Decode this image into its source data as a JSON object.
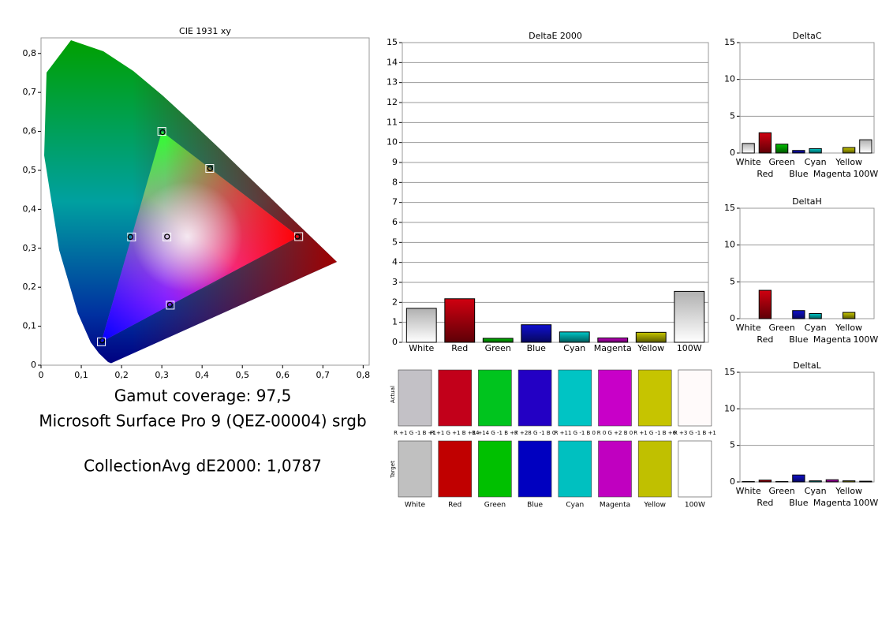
{
  "chart_data": [
    {
      "type": "scatter",
      "title": "CIE 1931 xy",
      "xlim": [
        0,
        0.815
      ],
      "ylim": [
        0,
        0.84
      ],
      "xticks": [
        0,
        {
          "value": 0.1,
          "label": "0,1"
        },
        {
          "value": 0.2,
          "label": "0,2"
        },
        {
          "value": 0.3,
          "label": "0,3"
        },
        {
          "value": 0.4,
          "label": "0,4"
        },
        {
          "value": 0.5,
          "label": "0,5"
        },
        {
          "value": 0.6,
          "label": "0,6"
        },
        {
          "value": 0.7,
          "label": "0,7"
        },
        {
          "value": 0.8,
          "label": "0,8"
        }
      ],
      "yticks": [
        0,
        {
          "value": 0.1,
          "label": "0,1"
        },
        {
          "value": 0.2,
          "label": "0,2"
        },
        {
          "value": 0.3,
          "label": "0,3"
        },
        {
          "value": 0.4,
          "label": "0,4"
        },
        {
          "value": 0.5,
          "label": "0,5"
        },
        {
          "value": 0.6,
          "label": "0,6"
        },
        {
          "value": 0.7,
          "label": "0,7"
        },
        {
          "value": 0.8,
          "label": "0,8"
        }
      ],
      "series": [
        {
          "marker": "square",
          "color": "#ffffff",
          "x": [
            0.64,
            0.3,
            0.15,
            0.225,
            0.321,
            0.419,
            0.3127
          ],
          "y": [
            0.33,
            0.6,
            0.06,
            0.329,
            0.154,
            0.505,
            0.329
          ]
        },
        {
          "marker": "circle",
          "color": "#000000",
          "x": [
            0.637,
            0.302,
            0.152,
            0.222,
            0.32,
            0.42,
            0.313
          ],
          "y": [
            0.33,
            0.598,
            0.063,
            0.329,
            0.155,
            0.505,
            0.33
          ]
        }
      ]
    },
    {
      "type": "bar",
      "title": "DeltaE 2000",
      "categories": [
        "White",
        "Red",
        "Green",
        "Blue",
        "Cyan",
        "Magenta",
        "Yellow",
        "100W"
      ],
      "values": [
        1.7,
        2.18,
        0.2,
        0.88,
        0.52,
        0.22,
        0.5,
        2.55
      ],
      "colors": [
        "#c0c0c0",
        "#d00010",
        "#00c000",
        "#1010d0",
        "#00c8c8",
        "#c800c8",
        "#c8c800",
        "#ffffff"
      ],
      "ylim": [
        0,
        15
      ],
      "yticks": [
        0,
        1,
        2,
        3,
        4,
        5,
        6,
        7,
        8,
        9,
        10,
        11,
        12,
        13,
        14,
        15
      ],
      "grid": true
    },
    {
      "type": "bar",
      "title": "DeltaC",
      "categories": [
        "White",
        "Red",
        "Green",
        "Blue",
        "Cyan",
        "Magenta",
        "Yellow",
        "100W"
      ],
      "values": [
        1.3,
        2.75,
        1.2,
        0.35,
        0.6,
        0,
        0.75,
        1.8
      ],
      "colors": [
        "#c0c0c0",
        "#d00010",
        "#00c000",
        "#1010d0",
        "#00c8c8",
        "#c800c8",
        "#c8c800",
        "#ffffff"
      ],
      "ylim": [
        0,
        15
      ],
      "yticks": [
        0,
        5,
        10,
        15
      ],
      "grid": true
    },
    {
      "type": "bar",
      "title": "DeltaH",
      "categories": [
        "White",
        "Red",
        "Green",
        "Blue",
        "Cyan",
        "Magenta",
        "Yellow",
        "100W"
      ],
      "values": [
        0,
        3.85,
        0,
        1.1,
        0.7,
        0,
        0.85,
        0
      ],
      "colors": [
        "#c0c0c0",
        "#d00010",
        "#00c000",
        "#1010d0",
        "#00c8c8",
        "#c800c8",
        "#c8c800",
        "#ffffff"
      ],
      "ylim": [
        0,
        15
      ],
      "yticks": [
        0,
        5,
        10,
        15
      ],
      "grid": true
    },
    {
      "type": "bar",
      "title": "DeltaL",
      "categories": [
        "White",
        "Red",
        "Green",
        "Blue",
        "Cyan",
        "Magenta",
        "Yellow",
        "100W"
      ],
      "values": [
        0.05,
        0.25,
        0.05,
        0.95,
        0.15,
        0.3,
        0.15,
        0.1
      ],
      "colors": [
        "#c0c0c0",
        "#d00010",
        "#00c000",
        "#1010d0",
        "#00c8c8",
        "#c800c8",
        "#c8c800",
        "#ffffff"
      ],
      "ylim": [
        0,
        15
      ],
      "yticks": [
        0,
        5,
        10,
        15
      ],
      "grid": true
    }
  ],
  "summary": [
    "Gamut coverage: 97,5",
    "Microsoft Surface Pro 9 (QEZ-00004) srgb",
    "CollectionAvg dE2000: 1,0787"
  ],
  "swatches": {
    "row_labels": [
      "Actual",
      "Target"
    ],
    "actual_colors": [
      "#c3c1c6",
      "#c2001a",
      "#00c41e",
      "#2300c4",
      "#00c4c4",
      "#c800c8",
      "#c6c400",
      "#fffafa"
    ],
    "target_colors": [
      "#c0c0c0",
      "#c00000",
      "#00c000",
      "#0000c0",
      "#00c0c0",
      "#c000c0",
      "#c0c000",
      "#ffffff"
    ],
    "differences": [
      "R +1 G -1 B +1",
      "R +1 G +1 B +14",
      "R +14 G -1 B +7",
      "R +28 G -1 B 0",
      "R +11 G -1 B 0",
      "R 0 G +2 B 0",
      "R +1 G -1 B +6",
      "R +3 G -1 B +1"
    ],
    "names": [
      "White",
      "Red",
      "Green",
      "Blue",
      "Cyan",
      "Magenta",
      "Yellow",
      "100W"
    ]
  }
}
